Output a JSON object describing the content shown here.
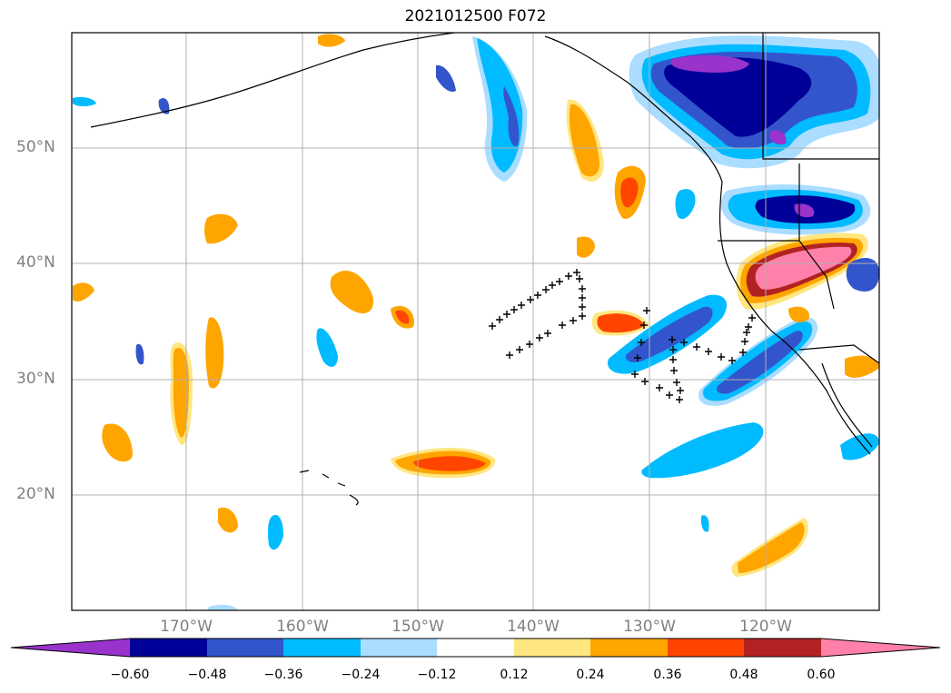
{
  "title": "2021012500 F072",
  "latitude_labels": [
    "50°N",
    "40°N",
    "30°N",
    "20°N"
  ],
  "longitude_labels": [
    "170°W",
    "160°W",
    "150°W",
    "140°W",
    "130°W",
    "120°W"
  ],
  "colorbar": {
    "labels": [
      "−0.60",
      "−0.48",
      "−0.36",
      "−0.24",
      "−0.12",
      "0.12",
      "0.24",
      "0.36",
      "0.48",
      "0.60"
    ],
    "colors": [
      "#9933cc",
      "#000099",
      "#3355cc",
      "#00bbff",
      "#aaddff",
      "#ffffff",
      "#ffe680",
      "#ffa500",
      "#ff4500",
      "#b22222",
      "#ff80a8"
    ]
  }
}
